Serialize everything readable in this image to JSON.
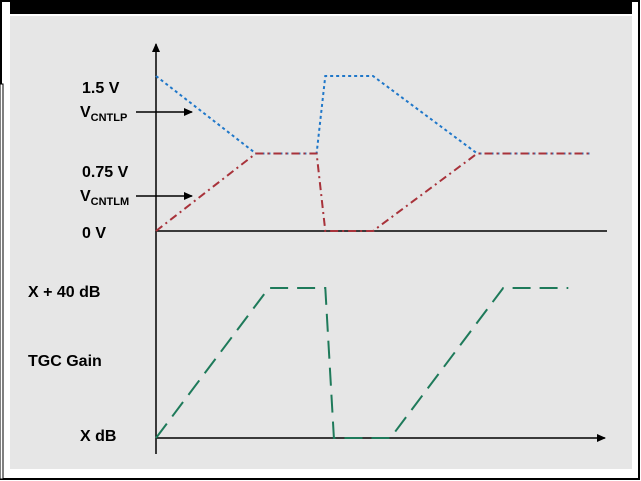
{
  "chart_data": {
    "type": "line",
    "title": "",
    "xlabel": "",
    "ylabel": "",
    "grid": false,
    "legend": "none",
    "upper_panel": {
      "ytick_labels": [
        {
          "key": "v15",
          "text": "1.5 V",
          "value": 1.5
        },
        {
          "key": "v075",
          "text": "0.75 V",
          "value": 0.75
        },
        {
          "key": "v0",
          "text": "0 V",
          "value": 0
        }
      ],
      "ylim": [
        0,
        1.5
      ],
      "xlim": [
        0,
        100
      ],
      "annotations": [
        {
          "key": "cntlp",
          "main": "V",
          "sub": "CNTLP",
          "points_to_value": 1.3
        },
        {
          "key": "cntlm",
          "main": "V",
          "sub": "CNTLM",
          "points_to_value": 0.35
        }
      ],
      "series": [
        {
          "key": "cntlp",
          "color": "#1f77c9",
          "style": "dotted",
          "x": [
            0,
            23,
            37,
            39,
            50,
            74,
            100
          ],
          "y": [
            1.5,
            0.75,
            0.75,
            1.5,
            1.5,
            0.75,
            0.75
          ]
        },
        {
          "key": "cntlm",
          "color": "#a8323a",
          "style": "dash-dot",
          "x": [
            0,
            23,
            37,
            39,
            50,
            74,
            100
          ],
          "y": [
            0,
            0.75,
            0.75,
            0,
            0,
            0.75,
            0.75
          ]
        }
      ]
    },
    "lower_panel": {
      "ytick_labels": [
        {
          "key": "x40",
          "text": "X + 40 dB",
          "value": 40
        },
        {
          "key": "tgc",
          "text": "TGC Gain",
          "value": 20
        },
        {
          "key": "x0",
          "text": "X dB",
          "value": 0
        }
      ],
      "ylim": [
        0,
        40
      ],
      "xlim": [
        0,
        100
      ],
      "series": [
        {
          "key": "gain",
          "color": "#1e7a5a",
          "style": "dashed",
          "x": [
            0,
            26,
            39,
            41,
            54,
            80,
            95
          ],
          "y": [
            0,
            40,
            40,
            0,
            0,
            40,
            40
          ]
        }
      ]
    }
  },
  "colors": {
    "border": "#000000",
    "background": "#e6e6e6",
    "axis": "#000000"
  }
}
